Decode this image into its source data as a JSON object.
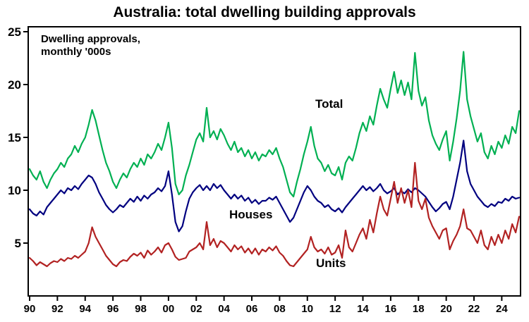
{
  "title": "Australia: total dwelling building approvals",
  "annotation": {
    "line1": "Dwelling approvals,",
    "line2": "monthly '000s"
  },
  "colors": {
    "total": "#00b052",
    "houses": "#000080",
    "units": "#b22222",
    "axis": "#000000",
    "background": "#ffffff"
  },
  "chart_data": {
    "type": "line",
    "title": "Australia: total dwelling building approvals",
    "note": "Dwelling approvals, monthly '000s",
    "x_start_year": 1990,
    "points_per_year": 4,
    "x_end": 2025.25,
    "ylim": [
      0,
      25
    ],
    "y_ticks": [
      5,
      10,
      15,
      20,
      25
    ],
    "x_tick_years": [
      1990,
      1992,
      1994,
      1996,
      1998,
      2000,
      2002,
      2004,
      2006,
      2008,
      2010,
      2012,
      2014,
      2016,
      2018,
      2020,
      2022,
      2024
    ],
    "x_tick_labels": [
      "90",
      "92",
      "94",
      "96",
      "98",
      "00",
      "02",
      "04",
      "06",
      "08",
      "10",
      "12",
      "14",
      "16",
      "18",
      "20",
      "22",
      "24"
    ],
    "grid": false,
    "legend": "inline-labels",
    "series": [
      {
        "name": "Total",
        "color": "#00b052",
        "values": [
          12.0,
          11.4,
          11.0,
          11.8,
          10.8,
          10.2,
          11.0,
          11.6,
          12.0,
          12.6,
          12.2,
          13.0,
          13.4,
          14.2,
          13.6,
          14.4,
          15.0,
          16.2,
          17.6,
          16.6,
          15.2,
          13.8,
          12.6,
          11.8,
          10.8,
          10.2,
          11.0,
          11.6,
          11.2,
          12.0,
          12.6,
          12.2,
          13.0,
          12.4,
          13.4,
          13.0,
          13.6,
          14.4,
          13.8,
          15.0,
          16.4,
          14.0,
          10.6,
          9.6,
          10.0,
          11.4,
          12.4,
          13.6,
          14.8,
          15.4,
          14.6,
          17.8,
          15.0,
          15.6,
          14.8,
          15.8,
          15.2,
          14.4,
          13.8,
          14.6,
          13.6,
          14.0,
          13.2,
          13.8,
          13.0,
          13.6,
          12.8,
          13.4,
          13.2,
          13.8,
          13.4,
          14.0,
          13.0,
          12.2,
          11.0,
          9.8,
          9.4,
          10.8,
          12.0,
          13.4,
          14.6,
          16.0,
          14.2,
          13.0,
          12.6,
          11.8,
          12.4,
          11.6,
          11.4,
          12.2,
          11.0,
          12.6,
          13.2,
          12.8,
          14.0,
          15.4,
          16.4,
          15.6,
          17.0,
          16.2,
          18.0,
          19.6,
          18.6,
          17.8,
          19.6,
          21.2,
          19.2,
          20.4,
          19.0,
          20.2,
          18.6,
          23.0,
          19.4,
          18.0,
          18.8,
          16.6,
          15.2,
          14.4,
          13.8,
          14.8,
          15.6,
          12.8,
          14.6,
          16.8,
          19.4,
          23.1,
          18.6,
          17.0,
          15.8,
          14.6,
          15.4,
          13.6,
          13.0,
          14.2,
          13.4,
          14.6,
          14.0,
          15.2,
          14.4,
          16.0,
          15.4,
          17.5
        ]
      },
      {
        "name": "Houses",
        "color": "#000080",
        "values": [
          8.2,
          7.8,
          7.6,
          8.0,
          7.7,
          8.4,
          8.8,
          9.2,
          9.6,
          10.0,
          9.7,
          10.2,
          10.0,
          10.4,
          10.1,
          10.6,
          11.0,
          11.4,
          11.2,
          10.6,
          9.8,
          9.2,
          8.6,
          8.2,
          7.9,
          8.2,
          8.6,
          8.4,
          8.8,
          9.2,
          8.9,
          9.4,
          9.0,
          9.5,
          9.2,
          9.6,
          9.8,
          10.2,
          9.9,
          10.4,
          11.8,
          9.6,
          7.0,
          6.1,
          6.6,
          8.0,
          9.2,
          9.8,
          10.2,
          10.5,
          10.0,
          10.4,
          10.0,
          10.6,
          10.2,
          10.5,
          10.0,
          9.6,
          9.2,
          9.6,
          9.2,
          9.5,
          9.0,
          9.3,
          8.8,
          9.1,
          8.7,
          9.0,
          9.0,
          9.3,
          9.1,
          9.4,
          8.8,
          8.2,
          7.6,
          7.0,
          7.4,
          8.2,
          9.0,
          9.8,
          10.4,
          10.0,
          9.4,
          9.0,
          8.8,
          8.4,
          8.6,
          8.2,
          8.0,
          8.3,
          7.9,
          8.4,
          8.8,
          9.2,
          9.6,
          10.0,
          10.4,
          10.0,
          10.3,
          9.9,
          10.2,
          10.6,
          10.0,
          9.7,
          9.9,
          10.2,
          9.6,
          9.9,
          9.7,
          10.1,
          9.8,
          10.2,
          10.0,
          9.7,
          9.4,
          8.9,
          8.4,
          8.0,
          8.3,
          8.7,
          8.9,
          8.2,
          9.4,
          11.0,
          12.6,
          14.7,
          11.8,
          10.6,
          10.0,
          9.4,
          9.0,
          8.6,
          8.4,
          8.7,
          8.5,
          8.9,
          8.8,
          9.2,
          9.0,
          9.4,
          9.2,
          9.3
        ]
      },
      {
        "name": "Units",
        "color": "#b22222",
        "values": [
          3.6,
          3.3,
          2.9,
          3.2,
          3.0,
          2.8,
          3.1,
          3.3,
          3.2,
          3.5,
          3.3,
          3.6,
          3.5,
          3.8,
          3.6,
          3.9,
          4.2,
          5.0,
          6.5,
          5.6,
          5.0,
          4.4,
          3.8,
          3.4,
          3.0,
          2.8,
          3.2,
          3.4,
          3.3,
          3.7,
          4.0,
          3.8,
          4.1,
          3.6,
          4.3,
          3.9,
          4.2,
          4.6,
          4.1,
          4.8,
          5.0,
          4.4,
          3.7,
          3.4,
          3.5,
          3.6,
          4.2,
          4.4,
          4.6,
          5.0,
          4.4,
          7.0,
          4.8,
          5.4,
          4.6,
          5.2,
          5.0,
          4.6,
          4.2,
          4.8,
          4.4,
          4.7,
          4.1,
          4.5,
          4.0,
          4.5,
          3.9,
          4.4,
          4.2,
          4.6,
          4.3,
          4.7,
          4.1,
          3.8,
          3.3,
          2.9,
          2.8,
          3.2,
          3.6,
          4.0,
          4.4,
          5.6,
          4.6,
          4.2,
          4.4,
          4.0,
          4.6,
          3.9,
          4.1,
          4.8,
          3.6,
          6.2,
          4.6,
          4.2,
          5.0,
          5.8,
          6.4,
          5.4,
          7.2,
          6.0,
          7.8,
          9.4,
          8.2,
          7.6,
          9.2,
          10.8,
          8.8,
          10.2,
          8.8,
          10.0,
          8.4,
          12.6,
          9.0,
          8.2,
          9.2,
          7.4,
          6.6,
          6.0,
          5.4,
          6.2,
          6.4,
          4.4,
          5.2,
          5.8,
          6.6,
          8.2,
          6.4,
          6.2,
          5.6,
          5.0,
          6.2,
          4.8,
          4.4,
          5.6,
          4.8,
          5.8,
          5.0,
          6.2,
          5.4,
          6.8,
          6.0,
          7.5
        ]
      }
    ]
  }
}
